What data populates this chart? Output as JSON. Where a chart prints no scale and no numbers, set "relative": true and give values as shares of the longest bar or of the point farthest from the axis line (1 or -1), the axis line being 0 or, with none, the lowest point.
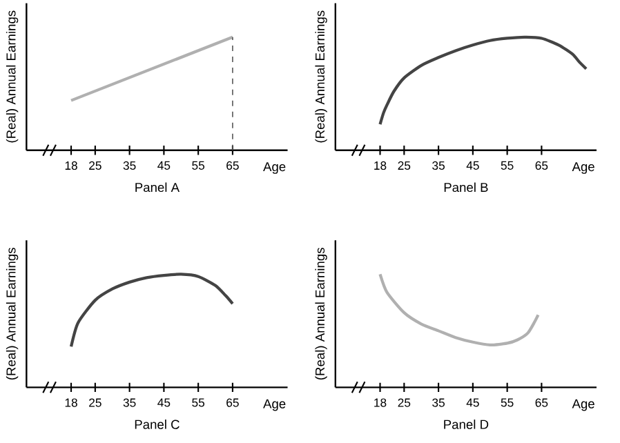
{
  "chart_data": [
    {
      "type": "line",
      "title": "Panel A",
      "xlabel": "Age",
      "ylabel": "(Real) Annual Earnings",
      "relative": true,
      "xlim": [
        5,
        81
      ],
      "xticks": [
        18,
        25,
        35,
        45,
        55,
        65
      ],
      "series": [
        {
          "color": "#b0b0b0",
          "x": [
            18,
            65
          ],
          "values": [
            0.44,
            1
          ]
        }
      ],
      "ref_lines": [
        {
          "axis": "x",
          "value": 65,
          "line_style": "dashed",
          "color": "#555555"
        }
      ]
    },
    {
      "type": "line",
      "title": "Panel B",
      "xlabel": "Age",
      "ylabel": "(Real) Annual Earnings",
      "relative": true,
      "xlim": [
        5,
        81
      ],
      "xticks": [
        18,
        25,
        35,
        45,
        55,
        65
      ],
      "series": [
        {
          "color": "#444444",
          "x": [
            18,
            19,
            20,
            22,
            25,
            30,
            35,
            40,
            45,
            50,
            55,
            60,
            65,
            70,
            74,
            76,
            78
          ],
          "values": [
            0.23,
            0.33,
            0.4,
            0.52,
            0.64,
            0.75,
            0.82,
            0.88,
            0.93,
            0.97,
            0.99,
            1,
            0.99,
            0.93,
            0.85,
            0.78,
            0.72
          ]
        }
      ]
    },
    {
      "type": "line",
      "title": "Panel C",
      "xlabel": "Age",
      "ylabel": "(Real) Annual Earnings",
      "relative": true,
      "xlim": [
        5,
        81
      ],
      "xticks": [
        18,
        25,
        35,
        45,
        55,
        65
      ],
      "series": [
        {
          "color": "#444444",
          "x": [
            18,
            20,
            25,
            30,
            35,
            40,
            45,
            50,
            55,
            60,
            63,
            65
          ],
          "values": [
            0.36,
            0.57,
            0.77,
            0.87,
            0.93,
            0.97,
            0.99,
            1,
            0.98,
            0.9,
            0.81,
            0.74
          ]
        }
      ]
    },
    {
      "type": "line",
      "title": "Panel D",
      "xlabel": "Age",
      "ylabel": "(Real) Annual Earnings",
      "relative": true,
      "xlim": [
        5,
        81
      ],
      "xticks": [
        18,
        25,
        35,
        45,
        55,
        65
      ],
      "series": [
        {
          "color": "#b0b0b0",
          "x": [
            18,
            20,
            25,
            30,
            35,
            40,
            45,
            50,
            55,
            58,
            61,
            63,
            64
          ],
          "values": [
            1,
            0.84,
            0.66,
            0.56,
            0.5,
            0.44,
            0.4,
            0.375,
            0.39,
            0.42,
            0.48,
            0.58,
            0.64
          ]
        }
      ]
    }
  ]
}
